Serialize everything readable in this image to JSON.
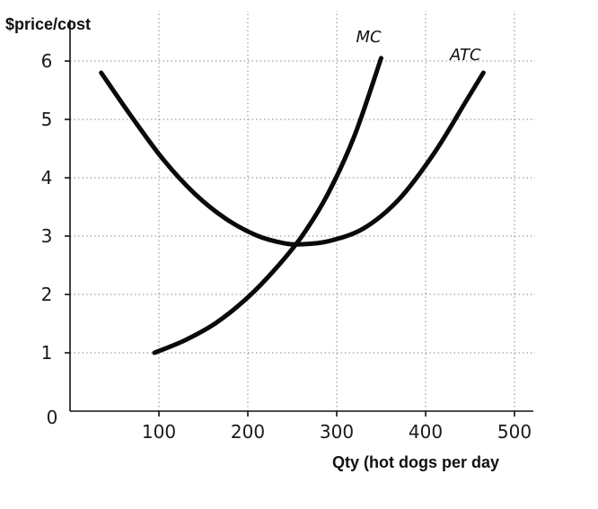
{
  "chart_data": {
    "type": "line",
    "title": "",
    "ylabel": "$price/cost",
    "xlabel": "Qty (hot dogs per day",
    "xlim": [
      0,
      520
    ],
    "ylim": [
      0,
      6.3
    ],
    "grid": true,
    "x_ticks": [
      "100",
      "200",
      "300",
      "400",
      "500"
    ],
    "y_ticks": [
      "0",
      "1",
      "2",
      "3",
      "4",
      "5",
      "6"
    ],
    "series": [
      {
        "name": "MC",
        "x": [
          95,
          130,
          165,
          200,
          230,
          260,
          290,
          320,
          350
        ],
        "y": [
          1.0,
          1.22,
          1.52,
          1.95,
          2.42,
          2.98,
          3.72,
          4.72,
          6.05
        ]
      },
      {
        "name": "ATC",
        "x": [
          35,
          70,
          105,
          140,
          175,
          210,
          240,
          260,
          290,
          330,
          370,
          410,
          445,
          465
        ],
        "y": [
          5.8,
          5.03,
          4.31,
          3.73,
          3.3,
          3.01,
          2.88,
          2.86,
          2.91,
          3.13,
          3.63,
          4.43,
          5.3,
          5.8
        ]
      }
    ]
  }
}
